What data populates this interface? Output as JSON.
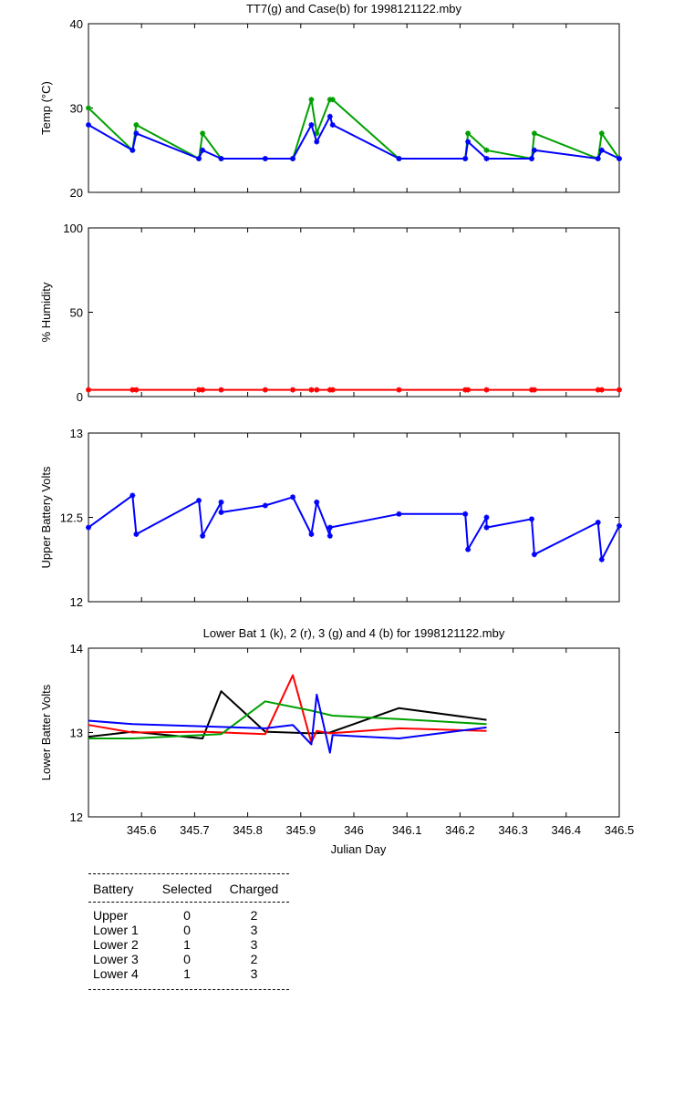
{
  "chart_data": [
    {
      "type": "line",
      "title": "TT7(g) and Case(b) for 1998121122.mby",
      "xlabel": "",
      "ylabel": "Temp  (°C)",
      "xlim": [
        345.5,
        346.5
      ],
      "ylim": [
        20,
        40
      ],
      "yticks": [
        20,
        30,
        40
      ],
      "series": [
        {
          "name": "TT7",
          "color": "#00a000",
          "marker": "*",
          "x": [
            345.5,
            345.583,
            345.59,
            345.708,
            345.715,
            345.75,
            345.833,
            345.885,
            345.92,
            345.93,
            345.955,
            345.96,
            346.085,
            346.21,
            346.215,
            346.25,
            346.335,
            346.34,
            346.46,
            346.467,
            346.5
          ],
          "y": [
            30,
            25,
            28,
            24,
            27,
            24,
            24,
            24,
            31,
            27,
            31,
            31,
            24,
            24,
            27,
            25,
            24,
            27,
            24,
            27,
            24
          ]
        },
        {
          "name": "Case",
          "color": "#0000ff",
          "marker": "*",
          "x": [
            345.5,
            345.583,
            345.59,
            345.708,
            345.715,
            345.75,
            345.833,
            345.885,
            345.92,
            345.93,
            345.955,
            345.96,
            346.085,
            346.21,
            346.215,
            346.25,
            346.335,
            346.34,
            346.46,
            346.467,
            346.5
          ],
          "y": [
            28,
            25,
            27,
            24,
            25,
            24,
            24,
            24,
            28,
            26,
            29,
            28,
            24,
            24,
            26,
            24,
            24,
            25,
            24,
            25,
            24
          ]
        }
      ]
    },
    {
      "type": "line",
      "title": "",
      "xlabel": "",
      "ylabel": "% Humidity",
      "xlim": [
        345.5,
        346.5
      ],
      "ylim": [
        0,
        100
      ],
      "yticks": [
        0,
        50,
        100
      ],
      "series": [
        {
          "name": "Humidity",
          "color": "#ff0000",
          "marker": "*",
          "x": [
            345.5,
            345.583,
            345.59,
            345.708,
            345.715,
            345.75,
            345.833,
            345.885,
            345.92,
            345.93,
            345.955,
            345.96,
            346.085,
            346.21,
            346.215,
            346.25,
            346.335,
            346.34,
            346.46,
            346.467,
            346.5
          ],
          "y": [
            4,
            4,
            4,
            4,
            4,
            4,
            4,
            4,
            4,
            4,
            4,
            4,
            4,
            4,
            4,
            4,
            4,
            4,
            4,
            4,
            4
          ]
        }
      ]
    },
    {
      "type": "line",
      "title": "",
      "xlabel": "",
      "ylabel": "Upper Battery Volts",
      "xlim": [
        345.5,
        346.5
      ],
      "ylim": [
        12,
        13
      ],
      "yticks": [
        12,
        12.5,
        13
      ],
      "series": [
        {
          "name": "Upper",
          "color": "#0000ff",
          "marker": "*",
          "x": [
            345.5,
            345.583,
            345.59,
            345.708,
            345.715,
            345.75,
            345.75,
            345.833,
            345.885,
            345.92,
            345.93,
            345.955,
            345.955,
            346.085,
            346.21,
            346.215,
            346.25,
            346.25,
            346.335,
            346.34,
            346.46,
            346.467,
            346.5
          ],
          "y": [
            12.44,
            12.63,
            12.4,
            12.6,
            12.39,
            12.59,
            12.53,
            12.57,
            12.62,
            12.4,
            12.59,
            12.39,
            12.44,
            12.52,
            12.52,
            12.31,
            12.5,
            12.44,
            12.49,
            12.28,
            12.47,
            12.25,
            12.45
          ]
        }
      ]
    },
    {
      "type": "line",
      "title": "Lower Bat 1 (k), 2 (r), 3 (g) and 4 (b) for 1998121122.mby",
      "xlabel": "Julian Day",
      "ylabel": "Lower Batter Volts",
      "xlim": [
        345.5,
        346.5
      ],
      "ylim": [
        12,
        14
      ],
      "yticks": [
        12,
        13,
        14
      ],
      "xticks": [
        345.6,
        345.7,
        345.8,
        345.9,
        346,
        346.1,
        346.2,
        346.3,
        346.4,
        346.5
      ],
      "xticklabels": [
        "345.6",
        "345.7",
        "345.8",
        "345.9",
        "346",
        "346.1",
        "346.2",
        "346.3",
        "346.4",
        "346.5"
      ],
      "series": [
        {
          "name": "Lower 1",
          "color": "#000000",
          "x": [
            345.5,
            345.583,
            345.715,
            345.75,
            345.833,
            345.92,
            345.955,
            346.085,
            346.25
          ],
          "y": [
            12.95,
            13.01,
            12.93,
            13.49,
            13.01,
            12.99,
            13.0,
            13.29,
            13.15
          ]
        },
        {
          "name": "Lower 2",
          "color": "#ff0000",
          "x": [
            345.5,
            345.583,
            345.715,
            345.833,
            345.885,
            345.92,
            345.93,
            345.955,
            346.085,
            346.25
          ],
          "y": [
            13.09,
            13.0,
            13.01,
            12.98,
            13.68,
            12.88,
            13.02,
            12.99,
            13.05,
            13.02
          ]
        },
        {
          "name": "Lower 3",
          "color": "#00a000",
          "x": [
            345.5,
            345.583,
            345.75,
            345.833,
            345.92,
            345.96,
            346.085,
            346.25
          ],
          "y": [
            12.93,
            12.93,
            12.98,
            13.37,
            13.26,
            13.2,
            13.16,
            13.1
          ]
        },
        {
          "name": "Lower 4",
          "color": "#0000ff",
          "x": [
            345.5,
            345.583,
            345.833,
            345.885,
            345.92,
            345.93,
            345.955,
            345.96,
            346.085,
            346.25
          ],
          "y": [
            13.14,
            13.1,
            13.05,
            13.09,
            12.86,
            13.45,
            12.76,
            12.97,
            12.93,
            13.06
          ]
        }
      ]
    }
  ],
  "battery_table": {
    "headers": [
      "Battery",
      "Selected",
      "Charged"
    ],
    "rows": [
      {
        "battery": "Upper",
        "selected": "0",
        "charged": "2"
      },
      {
        "battery": "Lower 1",
        "selected": "0",
        "charged": "3"
      },
      {
        "battery": "Lower 2",
        "selected": "1",
        "charged": "3"
      },
      {
        "battery": "Lower 3",
        "selected": "0",
        "charged": "2"
      },
      {
        "battery": "Lower 4",
        "selected": "1",
        "charged": "3"
      }
    ]
  }
}
